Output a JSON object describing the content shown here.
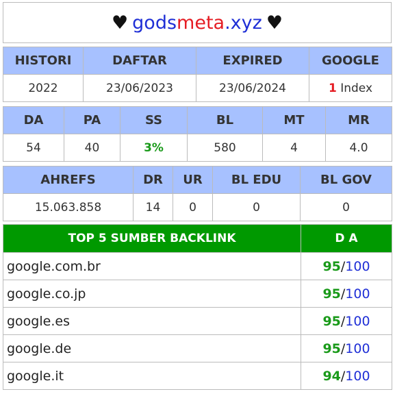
{
  "title": {
    "icon_left": "♥",
    "domain_part1": "gods",
    "domain_part2": "meta",
    "domain_part3": ".xyz",
    "icon_right": "♥"
  },
  "table1": {
    "headers": [
      "HISTORI",
      "DAFTAR",
      "EXPIRED",
      "GOOGLE"
    ],
    "histori": "2022",
    "daftar": "23/06/2023",
    "expired": "23/06/2024",
    "google_count": "1",
    "google_label": "Index"
  },
  "table2": {
    "headers": [
      "DA",
      "PA",
      "SS",
      "BL",
      "MT",
      "MR"
    ],
    "values": [
      "54",
      "40",
      "3%",
      "580",
      "4",
      "4.0"
    ]
  },
  "table3": {
    "headers": [
      "AHREFS",
      "DR",
      "UR",
      "BL EDU",
      "BL GOV"
    ],
    "values": [
      "15.063.858",
      "14",
      "0",
      "0",
      "0"
    ]
  },
  "backlinks": {
    "header_source": "TOP 5 SUMBER BACKLINK",
    "header_da": "D A",
    "rows": [
      {
        "domain": "google.com.br",
        "score": "95",
        "max": "100"
      },
      {
        "domain": "google.co.jp",
        "score": "95",
        "max": "100"
      },
      {
        "domain": "google.es",
        "score": "95",
        "max": "100"
      },
      {
        "domain": "google.de",
        "score": "95",
        "max": "100"
      },
      {
        "domain": "google.it",
        "score": "94",
        "max": "100"
      }
    ]
  },
  "colors": {
    "header_bg": "#a7c1ff",
    "backlink_header_bg": "#009900",
    "score_green": "#1a9a1a",
    "accent_red": "#e51c23",
    "accent_blue": "#1f2fd6"
  }
}
